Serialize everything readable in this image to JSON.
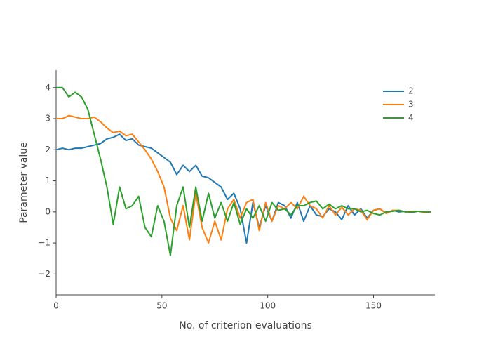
{
  "chart_data": {
    "type": "line",
    "xlabel": "No. of criterion evaluations",
    "ylabel": "Parameter value",
    "x": [
      0,
      3,
      6,
      9,
      12,
      15,
      18,
      21,
      24,
      27,
      30,
      33,
      36,
      39,
      42,
      45,
      48,
      51,
      54,
      57,
      60,
      63,
      66,
      69,
      72,
      75,
      78,
      81,
      84,
      87,
      90,
      93,
      96,
      99,
      102,
      105,
      108,
      111,
      114,
      117,
      120,
      123,
      126,
      129,
      132,
      135,
      138,
      141,
      144,
      147,
      150,
      153,
      156,
      159,
      162,
      165,
      168,
      171,
      174,
      177
    ],
    "series": [
      {
        "name": "2",
        "color": "#1f77b4",
        "values": [
          2.0,
          2.05,
          2.0,
          2.05,
          2.05,
          2.1,
          2.15,
          2.2,
          2.35,
          2.4,
          2.5,
          2.3,
          2.35,
          2.15,
          2.1,
          2.05,
          1.9,
          1.75,
          1.6,
          1.2,
          1.5,
          1.3,
          1.5,
          1.15,
          1.1,
          0.95,
          0.8,
          0.4,
          0.6,
          0.1,
          -1.0,
          0.3,
          -0.5,
          0.2,
          -0.3,
          0.3,
          0.2,
          -0.2,
          0.3,
          -0.3,
          0.2,
          -0.1,
          -0.15,
          0.1,
          0,
          -0.25,
          0.2,
          -0.1,
          0.1,
          -0.2,
          0.05,
          0.1,
          -0.05,
          0.05,
          0,
          0.02,
          -0.02,
          0.02,
          0,
          0
        ]
      },
      {
        "name": "3",
        "color": "#ff7f0e",
        "values": [
          3.0,
          3.0,
          3.1,
          3.05,
          3.0,
          3.0,
          3.05,
          2.9,
          2.7,
          2.55,
          2.6,
          2.45,
          2.5,
          2.25,
          2.0,
          1.7,
          1.3,
          0.8,
          -0.2,
          -0.6,
          0.2,
          -0.9,
          0.6,
          -0.5,
          -1.0,
          -0.3,
          -0.9,
          0.1,
          0.4,
          -0.2,
          0.3,
          0.4,
          -0.6,
          0.3,
          -0.3,
          0.2,
          0.1,
          0.3,
          0.1,
          0.5,
          0.2,
          0.1,
          -0.2,
          0.2,
          -0.1,
          0.15,
          -0.1,
          0.1,
          0.05,
          -0.25,
          0.05,
          0.1,
          -0.05,
          0.05,
          0.05,
          0,
          0.02,
          0.02,
          -0.02,
          0
        ]
      },
      {
        "name": "4",
        "color": "#2ca02c",
        "values": [
          4.0,
          4.0,
          3.7,
          3.85,
          3.7,
          3.3,
          2.5,
          1.7,
          0.8,
          -0.4,
          0.8,
          0.1,
          0.2,
          0.5,
          -0.5,
          -0.8,
          0.2,
          -0.3,
          -1.4,
          0.2,
          0.8,
          -0.5,
          0.8,
          -0.3,
          0.6,
          -0.2,
          0.3,
          -0.3,
          0.3,
          -0.4,
          0.1,
          -0.2,
          0.2,
          -0.3,
          0.3,
          0.05,
          0.1,
          -0.1,
          0.2,
          0.2,
          0.3,
          0.35,
          0.1,
          0.25,
          0.1,
          0.2,
          0.1,
          0.1,
          0,
          0.05,
          -0.05,
          -0.1,
          0,
          0.02,
          0.05,
          0,
          0,
          0.02,
          0,
          0
        ]
      }
    ],
    "xlim": [
      0,
      179
    ],
    "ylim": [
      -2.67,
      4.56
    ],
    "xticks": [
      0,
      50,
      100,
      150
    ],
    "yticks": [
      {
        "value": -2,
        "label": "−2"
      },
      {
        "value": -1,
        "label": "−1"
      },
      0,
      1,
      2,
      3,
      4
    ],
    "grid": false,
    "legend": "top-right"
  }
}
